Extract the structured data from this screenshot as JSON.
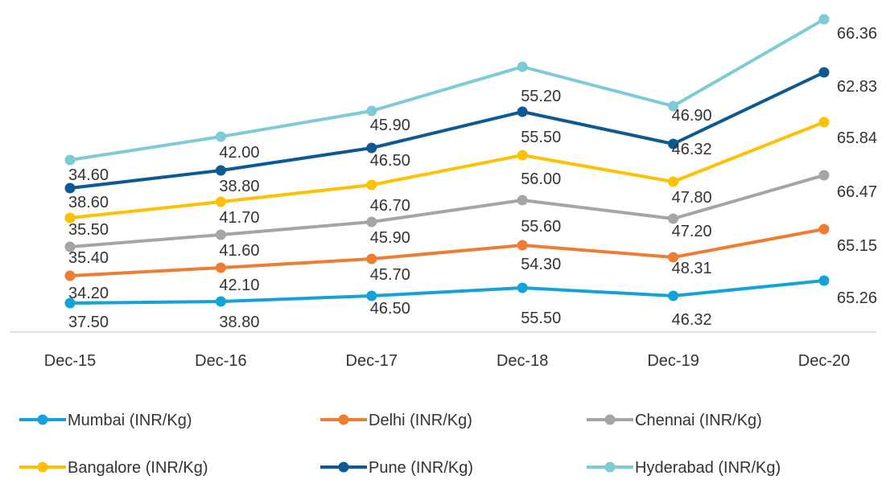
{
  "chart_data": {
    "type": "line",
    "title": "",
    "xlabel": "",
    "ylabel": "",
    "categories": [
      "Dec-15",
      "Dec-16",
      "Dec-17",
      "Dec-18",
      "Dec-19",
      "Dec-20"
    ],
    "grid": false,
    "legend_placement": "bottom",
    "series": [
      {
        "name": "Mumbai (INR/Kg)",
        "color": "#13A3D8",
        "values": [
          37.5,
          38.8,
          46.5,
          55.5,
          46.32,
          65.26
        ],
        "labels": [
          "37.50",
          "38.80",
          "46.50",
          "55.50",
          "46.32",
          "65.26"
        ]
      },
      {
        "name": "Delhi (INR/Kg)",
        "color": "#ED7D31",
        "values": [
          34.2,
          42.1,
          45.7,
          54.3,
          48.31,
          65.15
        ],
        "labels": [
          "34.20",
          "42.10",
          "45.70",
          "54.30",
          "48.31",
          "65.15"
        ]
      },
      {
        "name": "Chennai (INR/Kg)",
        "color": "#A5A5A5",
        "values": [
          35.4,
          41.6,
          45.9,
          55.6,
          47.2,
          66.47
        ],
        "labels": [
          "35.40",
          "41.60",
          "45.90",
          "55.60",
          "47.20",
          "66.47"
        ]
      },
      {
        "name": "Bangalore (INR/Kg)",
        "color": "#FFC000",
        "values": [
          35.5,
          41.7,
          46.7,
          56.0,
          47.8,
          65.84
        ],
        "labels": [
          "35.50",
          "41.70",
          "46.70",
          "56.00",
          "47.80",
          "65.84"
        ]
      },
      {
        "name": "Pune (INR/Kg)",
        "color": "#0D5A93",
        "values": [
          38.6,
          38.8,
          46.5,
          55.5,
          46.32,
          62.83
        ],
        "labels": [
          "38.60",
          "38.80",
          "46.50",
          "55.50",
          "46.32",
          "62.83"
        ]
      },
      {
        "name": "Hyderabad (INR/Kg)",
        "color": "#7ECBD6",
        "values": [
          34.6,
          42.0,
          45.9,
          55.2,
          46.9,
          66.36
        ],
        "labels": [
          "34.60",
          "42.00",
          "45.90",
          "55.20",
          "46.90",
          "66.36"
        ]
      }
    ]
  }
}
